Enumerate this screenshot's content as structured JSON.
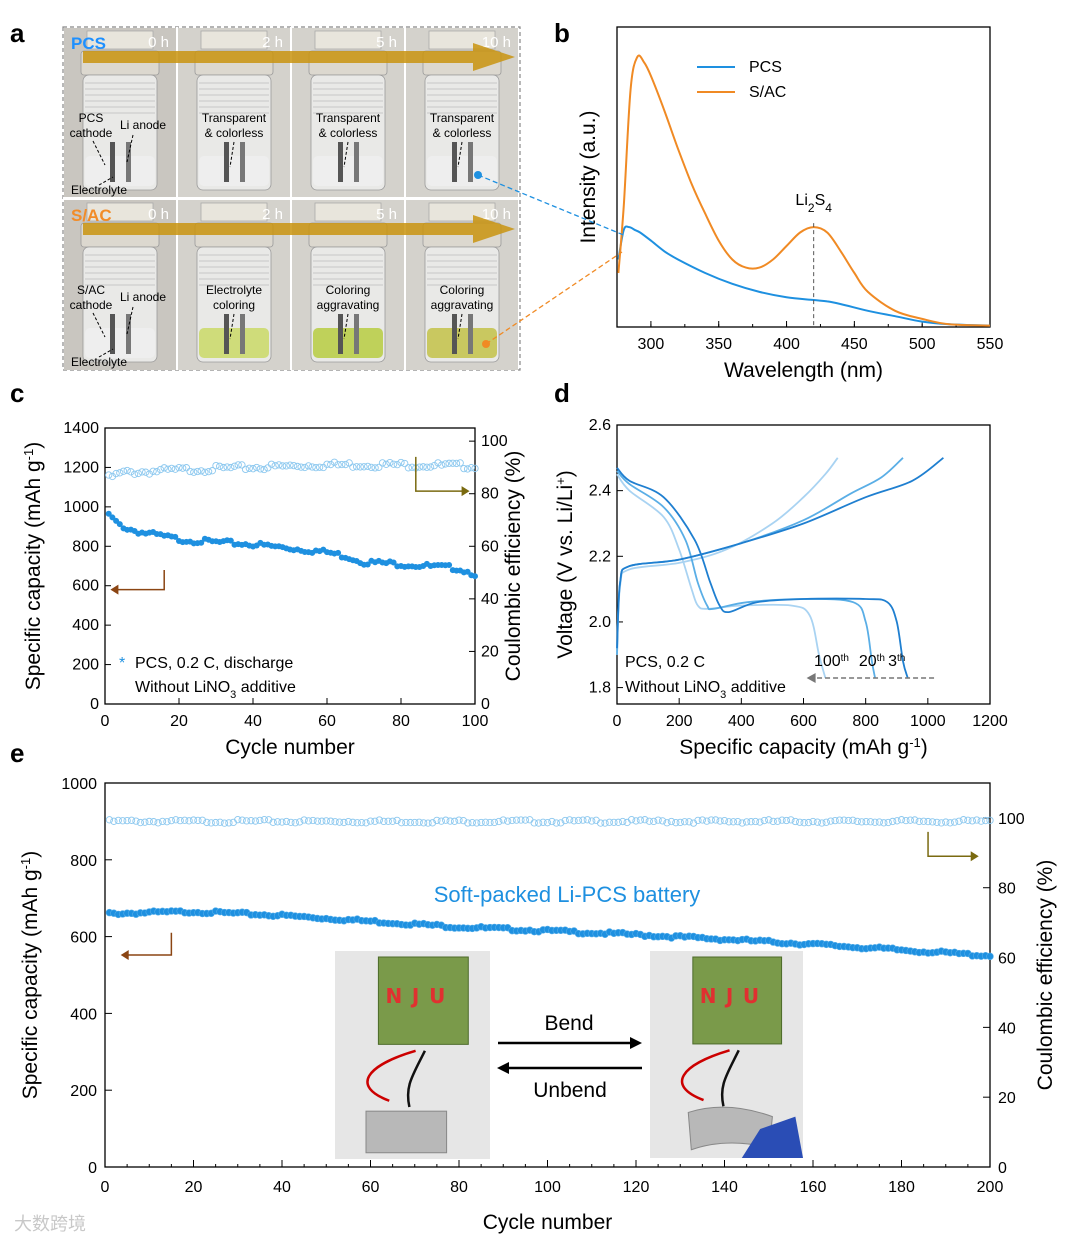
{
  "panel_labels": {
    "a": "a",
    "b": "b",
    "c": "c",
    "d": "d",
    "e": "e"
  },
  "panel_a": {
    "rows": [
      {
        "sample": "PCS",
        "sample_color": "#1e90ff",
        "times": [
          "0 h",
          "2 h",
          "5 h",
          "10 h"
        ],
        "captions": [
          {
            "lines": [
              "PCS",
              "cathode"
            ],
            "extra": "Li anode",
            "bottom": "Electrolyte"
          },
          {
            "lines": [
              "Transparent",
              "& colorless"
            ]
          },
          {
            "lines": [
              "Transparent",
              "& colorless"
            ]
          },
          {
            "lines": [
              "Transparent",
              "& colorless"
            ]
          }
        ]
      },
      {
        "sample": "S/AC",
        "sample_color": "#f28c28",
        "times": [
          "0 h",
          "2 h",
          "5 h",
          "10 h"
        ],
        "captions": [
          {
            "lines": [
              "S/AC",
              "cathode"
            ],
            "extra": "Li anode",
            "bottom": "Electrolyte"
          },
          {
            "lines": [
              "Electrolyte",
              "coloring"
            ]
          },
          {
            "lines": [
              "Coloring",
              "aggravating"
            ]
          },
          {
            "lines": [
              "Coloring",
              "aggravating"
            ]
          }
        ]
      }
    ]
  },
  "chart_data": [
    {
      "panel": "b",
      "type": "line",
      "xlabel": "Wavelength (nm)",
      "ylabel": "Intensity (a.u.)",
      "xlim": [
        275,
        550
      ],
      "xticks": [
        300,
        350,
        400,
        450,
        500,
        550
      ],
      "legend": "top",
      "annotation": "Li2S4",
      "annotation_x": 420,
      "series": [
        {
          "name": "PCS",
          "color": "#1e90e0",
          "x": [
            276,
            280,
            284,
            288,
            292,
            300,
            310,
            320,
            340,
            360,
            380,
            400,
            420,
            430,
            440,
            460,
            480,
            500,
            520,
            550
          ],
          "y": [
            0.25,
            0.36,
            0.37,
            0.36,
            0.35,
            0.32,
            0.28,
            0.25,
            0.2,
            0.16,
            0.13,
            0.11,
            0.1,
            0.095,
            0.085,
            0.06,
            0.04,
            0.02,
            0.01,
            0.005
          ]
        },
        {
          "name": "S/AC",
          "color": "#f08a24",
          "x": [
            276,
            280,
            285,
            290,
            295,
            300,
            310,
            320,
            330,
            340,
            350,
            360,
            370,
            380,
            390,
            400,
            410,
            420,
            430,
            440,
            450,
            460,
            480,
            500,
            520,
            550
          ],
          "y": [
            0.2,
            0.45,
            0.88,
            1.0,
            0.98,
            0.93,
            0.8,
            0.66,
            0.53,
            0.42,
            0.32,
            0.25,
            0.22,
            0.22,
            0.25,
            0.3,
            0.35,
            0.37,
            0.35,
            0.28,
            0.2,
            0.13,
            0.06,
            0.03,
            0.01,
            0.005
          ]
        }
      ]
    },
    {
      "panel": "c",
      "type": "scatter",
      "xlabel": "Cycle number",
      "ylabel": "Specific capacity (mAh g-1)",
      "y2label": "Coulombic efficiency (%)",
      "xlim": [
        0,
        100
      ],
      "ylim": [
        0,
        1400
      ],
      "y2lim": [
        0,
        105
      ],
      "xticks": [
        0,
        20,
        40,
        60,
        80,
        100
      ],
      "yticks": [
        0,
        200,
        400,
        600,
        800,
        1000,
        1200,
        1400
      ],
      "y2ticks": [
        0,
        20,
        40,
        60,
        80,
        100
      ],
      "legend_text": "PCS, 0.2 C, discharge",
      "note": "Without LiNO3 additive",
      "capacity_anchors": [
        [
          1,
          960
        ],
        [
          3,
          920
        ],
        [
          6,
          890
        ],
        [
          10,
          870
        ],
        [
          20,
          835
        ],
        [
          30,
          820
        ],
        [
          40,
          810
        ],
        [
          50,
          790
        ],
        [
          60,
          770
        ],
        [
          65,
          750
        ],
        [
          70,
          720
        ],
        [
          80,
          710
        ],
        [
          90,
          695
        ],
        [
          95,
          690
        ],
        [
          100,
          660
        ]
      ],
      "ce_anchors": [
        [
          1,
          86
        ],
        [
          5,
          88
        ],
        [
          20,
          89
        ],
        [
          40,
          90
        ],
        [
          60,
          91
        ],
        [
          80,
          91
        ],
        [
          100,
          90.5
        ]
      ]
    },
    {
      "panel": "d",
      "type": "line",
      "xlabel": "Specific capacity (mAh g-1)",
      "ylabel": "Voltage (V vs. Li/Li+)",
      "xlim": [
        0,
        1200
      ],
      "ylim": [
        1.75,
        2.6
      ],
      "xticks": [
        0,
        200,
        400,
        600,
        800,
        1000,
        1200
      ],
      "yticks": [
        1.8,
        2.0,
        2.2,
        2.4,
        2.6
      ],
      "legend_text": "PCS, 0.2 C",
      "note": "Without LiNO3 additive",
      "series": [
        {
          "name": "3th",
          "color": "#1f7fd0",
          "discharge": [
            [
              0,
              2.47
            ],
            [
              40,
              2.43
            ],
            [
              150,
              2.38
            ],
            [
              250,
              2.25
            ],
            [
              300,
              2.12
            ],
            [
              330,
              2.05
            ],
            [
              360,
              2.03
            ],
            [
              450,
              2.06
            ],
            [
              600,
              2.07
            ],
            [
              800,
              2.07
            ],
            [
              870,
              2.06
            ],
            [
              900,
              2.0
            ],
            [
              920,
              1.88
            ],
            [
              935,
              1.83
            ]
          ],
          "charge": [
            [
              0,
              1.92
            ],
            [
              10,
              2.12
            ],
            [
              40,
              2.17
            ],
            [
              200,
              2.19
            ],
            [
              400,
              2.24
            ],
            [
              600,
              2.3
            ],
            [
              800,
              2.38
            ],
            [
              950,
              2.43
            ],
            [
              1050,
              2.5
            ]
          ]
        },
        {
          "name": "20th",
          "color": "#5aaee6",
          "discharge": [
            [
              0,
              2.46
            ],
            [
              40,
              2.42
            ],
            [
              150,
              2.35
            ],
            [
              220,
              2.25
            ],
            [
              260,
              2.12
            ],
            [
              290,
              2.05
            ],
            [
              310,
              2.04
            ],
            [
              420,
              2.06
            ],
            [
              600,
              2.07
            ],
            [
              760,
              2.06
            ],
            [
              800,
              2.0
            ],
            [
              820,
              1.88
            ],
            [
              830,
              1.83
            ]
          ],
          "charge": [
            [
              0,
              1.9
            ],
            [
              10,
              2.12
            ],
            [
              40,
              2.17
            ],
            [
              200,
              2.19
            ],
            [
              400,
              2.24
            ],
            [
              600,
              2.31
            ],
            [
              750,
              2.39
            ],
            [
              850,
              2.44
            ],
            [
              920,
              2.5
            ]
          ]
        },
        {
          "name": "100th",
          "color": "#a9d3f2",
          "discharge": [
            [
              0,
              2.45
            ],
            [
              40,
              2.4
            ],
            [
              150,
              2.32
            ],
            [
              200,
              2.22
            ],
            [
              240,
              2.1
            ],
            [
              260,
              2.05
            ],
            [
              290,
              2.04
            ],
            [
              400,
              2.05
            ],
            [
              560,
              2.05
            ],
            [
              620,
              2.02
            ],
            [
              650,
              1.9
            ],
            [
              670,
              1.83
            ]
          ],
          "charge": [
            [
              0,
              1.9
            ],
            [
              10,
              2.11
            ],
            [
              40,
              2.16
            ],
            [
              200,
              2.18
            ],
            [
              350,
              2.22
            ],
            [
              500,
              2.3
            ],
            [
              600,
              2.38
            ],
            [
              670,
              2.45
            ],
            [
              710,
              2.5
            ]
          ]
        }
      ],
      "cycle_labels": [
        "100th",
        "20th",
        "3th"
      ]
    },
    {
      "panel": "e",
      "type": "scatter",
      "xlabel": "Cycle number",
      "ylabel": "Specific capacity (mAh g-1)",
      "y2label": "Coulombic efficiency (%)",
      "xlim": [
        0,
        200
      ],
      "ylim": [
        0,
        1000
      ],
      "y2lim": [
        0,
        110
      ],
      "xticks": [
        0,
        20,
        40,
        60,
        80,
        100,
        120,
        140,
        160,
        180,
        200
      ],
      "yticks": [
        0,
        200,
        400,
        600,
        800,
        1000
      ],
      "y2ticks": [
        0,
        20,
        40,
        60,
        80,
        100
      ],
      "title_in_plot": "Soft-packed Li-PCS battery",
      "capacity_anchors": [
        [
          1,
          660
        ],
        [
          20,
          665
        ],
        [
          40,
          655
        ],
        [
          60,
          640
        ],
        [
          80,
          625
        ],
        [
          100,
          615
        ],
        [
          120,
          605
        ],
        [
          140,
          593
        ],
        [
          160,
          580
        ],
        [
          180,
          565
        ],
        [
          200,
          550
        ]
      ],
      "ce_anchors": [
        [
          1,
          99
        ],
        [
          100,
          99
        ],
        [
          200,
          99
        ]
      ],
      "inset": {
        "bend": "Bend",
        "unbend": "Unbend"
      }
    }
  ],
  "watermark": "大数跨境"
}
